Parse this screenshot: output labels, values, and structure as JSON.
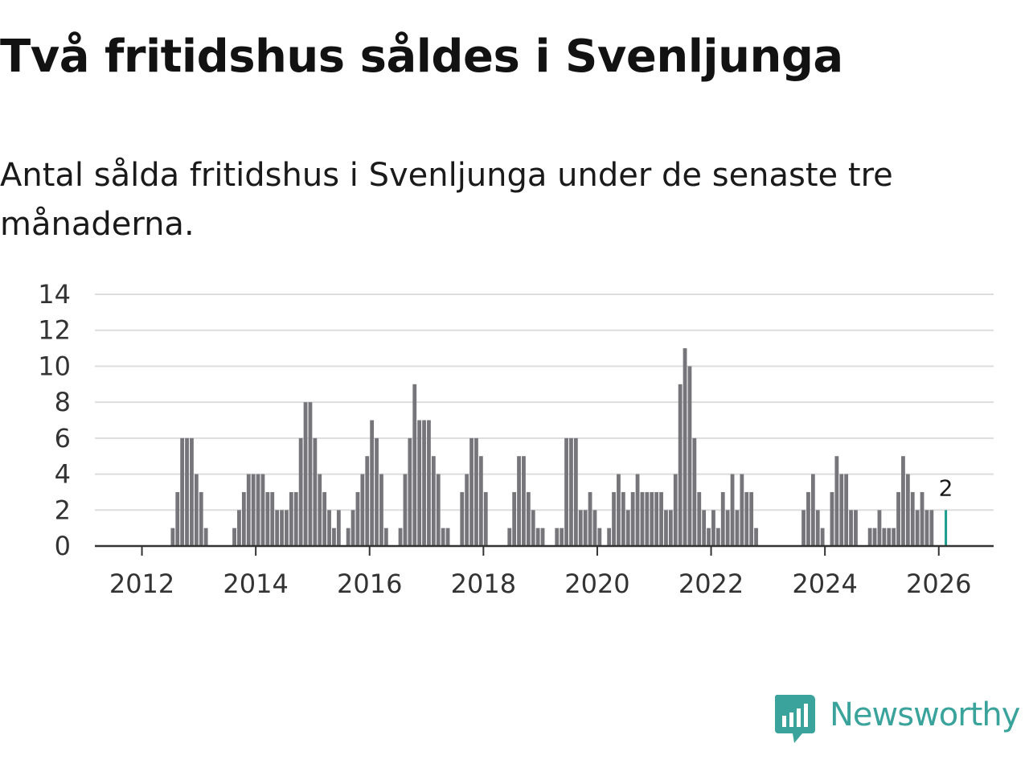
{
  "title": "Två fritidshus såldes i Svenljunga",
  "subtitle": "Antal sålda fritidshus i Svenljunga under de senaste tre månaderna.",
  "brand": {
    "name": "Newsworthy",
    "color": "#3aa39b",
    "icon": "newsworthy-logo-icon"
  },
  "colors": {
    "bar": "#76757a",
    "highlight": "#1b9c8f",
    "grid": "#dddddd",
    "axis": "#333333"
  },
  "chart_data": {
    "type": "bar",
    "title": "Antal sålda fritidshus i Svenljunga",
    "xlabel": "",
    "ylabel": "",
    "ylim": [
      0,
      14
    ],
    "yticks": [
      "0",
      "2",
      "4",
      "6",
      "8",
      "10",
      "12",
      "14"
    ],
    "xticks": [
      "2012",
      "2014",
      "2016",
      "2018",
      "2020",
      "2022",
      "2024",
      "2026"
    ],
    "period": "monthly, Jan 2011 – Feb 2026",
    "start": {
      "year": 2011,
      "month": 1
    },
    "values": [
      0,
      0,
      0,
      0,
      0,
      0,
      0,
      0,
      0,
      0,
      0,
      0,
      0,
      0,
      0,
      0,
      0,
      0,
      1,
      3,
      6,
      6,
      6,
      4,
      3,
      1,
      0,
      0,
      0,
      0,
      0,
      1,
      2,
      3,
      4,
      4,
      4,
      4,
      3,
      3,
      2,
      2,
      2,
      3,
      3,
      6,
      8,
      8,
      6,
      4,
      3,
      2,
      1,
      2,
      0,
      1,
      2,
      3,
      4,
      5,
      7,
      6,
      4,
      1,
      0,
      0,
      1,
      4,
      6,
      9,
      7,
      7,
      7,
      5,
      4,
      1,
      1,
      0,
      0,
      3,
      4,
      6,
      6,
      5,
      3,
      0,
      0,
      0,
      0,
      1,
      3,
      5,
      5,
      3,
      2,
      1,
      1,
      0,
      0,
      1,
      1,
      6,
      6,
      6,
      2,
      2,
      3,
      2,
      1,
      0,
      1,
      3,
      4,
      3,
      2,
      3,
      4,
      3,
      3,
      3,
      3,
      3,
      2,
      2,
      4,
      9,
      11,
      10,
      6,
      3,
      2,
      1,
      2,
      1,
      3,
      2,
      4,
      2,
      4,
      3,
      3,
      1,
      0,
      0,
      0,
      0,
      0,
      0,
      0,
      0,
      0,
      2,
      3,
      4,
      2,
      1,
      0,
      3,
      5,
      4,
      4,
      2,
      2,
      0,
      0,
      1,
      1,
      2,
      1,
      1,
      1,
      3,
      5,
      4,
      3,
      2,
      3,
      2,
      2,
      0,
      0,
      2
    ],
    "highlight_last": 2,
    "annotation": "2"
  }
}
